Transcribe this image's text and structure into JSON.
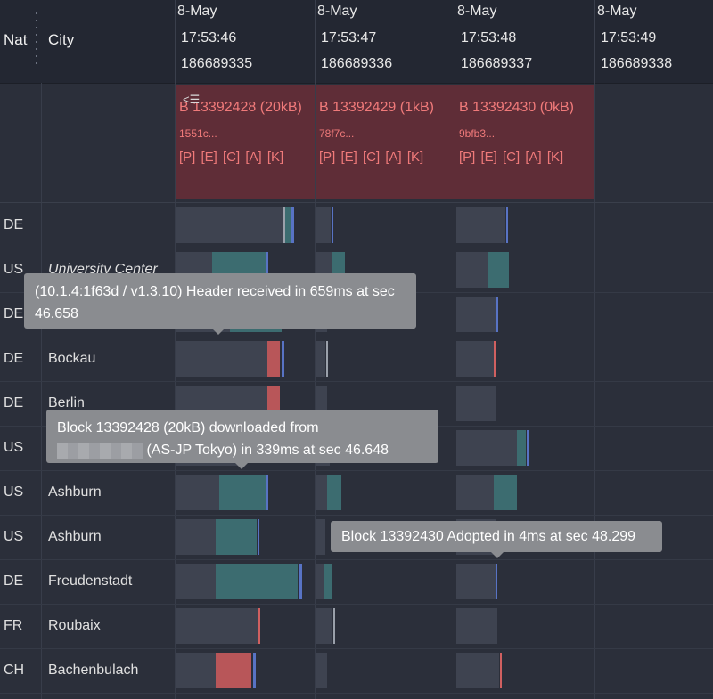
{
  "header": {
    "nat_label": "Nat",
    "city_label": "City",
    "timeline": [
      {
        "date": "8-May",
        "time": "17:53:46",
        "slot": "186689335"
      },
      {
        "date": "8-May",
        "time": "17:53:47",
        "slot": "186689336"
      },
      {
        "date": "8-May",
        "time": "17:53:48",
        "slot": "186689337"
      },
      {
        "date": "8-May",
        "time": "17:53:49",
        "slot": "186689338"
      }
    ]
  },
  "blocks": [
    {
      "title": "B 13392428 (20kB)",
      "hash": "1551c...",
      "flags": "[P] [E] [C] [A] [K]"
    },
    {
      "title": "B 13392429 (1kB)",
      "hash": "78f7c...",
      "flags": "[P] [E] [C] [A] [K]"
    },
    {
      "title": "B 13392430 (0kB)",
      "hash": "9bfb3...",
      "flags": "[P] [E] [C] [A] [K]"
    }
  ],
  "icons": {
    "sort_icon": "sort-icon"
  },
  "rows": [
    {
      "nat": "DE",
      "city": ""
    },
    {
      "nat": "US",
      "city": "University Center"
    },
    {
      "nat": "DE",
      "city": ""
    },
    {
      "nat": "DE",
      "city": "Bockau"
    },
    {
      "nat": "DE",
      "city": "Berlin"
    },
    {
      "nat": "US",
      "city": ""
    },
    {
      "nat": "US",
      "city": "Ashburn"
    },
    {
      "nat": "US",
      "city": "Ashburn"
    },
    {
      "nat": "DE",
      "city": "Freudenstadt"
    },
    {
      "nat": "FR",
      "city": "Roubaix"
    },
    {
      "nat": "CH",
      "city": "Bachenbulach"
    }
  ],
  "tooltips": {
    "header": "(10.1.4:1f63d / v1.3.10) Header received in 659ms at sec 46.658",
    "download_line1": "Block 13392428 (20kB) downloaded from",
    "download_line2": "(AS-JP Tokyo) in 339ms at sec 46.648",
    "adopted": "Block 13392430 Adopted in 4ms at sec 48.299"
  },
  "colors": {
    "block_bg": "#5f2d37",
    "block_text": "#f07a7a",
    "teal": "#3c6c70",
    "red": "#b85659",
    "tooltip": "#8a8c90"
  }
}
